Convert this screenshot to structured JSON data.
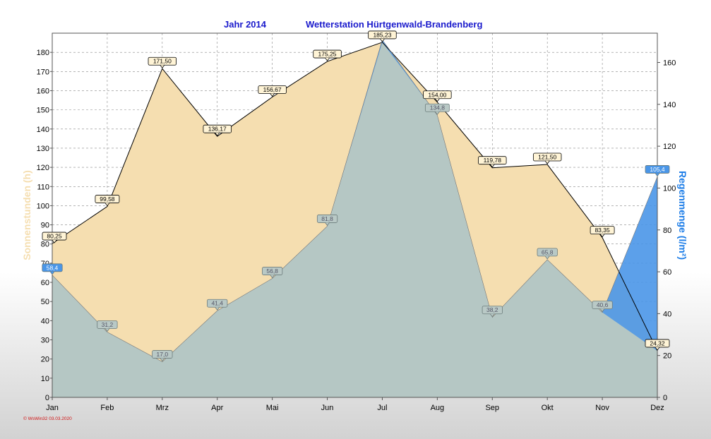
{
  "chart_data": {
    "type": "area",
    "title_year": "Jahr  2014",
    "title_station": "Wetterstation Hürtgenwald-Brandenberg",
    "categories": [
      "Jan",
      "Feb",
      "Mrz",
      "Apr",
      "Mai",
      "Jun",
      "Jul",
      "Aug",
      "Sep",
      "Okt",
      "Nov",
      "Dez"
    ],
    "left_axis": {
      "label": "Sonnenstunden (h)",
      "ylim": [
        0,
        190
      ],
      "ticks": [
        0,
        10,
        20,
        30,
        40,
        50,
        60,
        70,
        80,
        90,
        100,
        110,
        120,
        130,
        140,
        150,
        160,
        170,
        180
      ]
    },
    "right_axis": {
      "label": "Regenmenge  (l/m²)",
      "ylim": [
        0,
        174
      ],
      "ticks": [
        0,
        20,
        40,
        60,
        80,
        100,
        120,
        140,
        160
      ]
    },
    "grid": true,
    "series": [
      {
        "axis": "left",
        "values": [
          80.25,
          99.58,
          171.5,
          136.17,
          156.67,
          175.25,
          185.23,
          154.0,
          119.78,
          121.5,
          83.35,
          24.32
        ],
        "labels": [
          "80,25",
          "99,58",
          "171,50",
          "136,17",
          "156,67",
          "175,25",
          "185,23",
          "154,00",
          "119,78",
          "121,50",
          "83,35",
          "24,32"
        ],
        "color": "#f5deb0"
      },
      {
        "axis": "right",
        "values": [
          58.4,
          31.2,
          17.0,
          41.4,
          56.8,
          81.8,
          170.8,
          134.8,
          38.2,
          65.8,
          40.6,
          105.4
        ],
        "labels": [
          "58,4",
          "31,2",
          "17,0",
          "41,4",
          "56,8",
          "81,8",
          "",
          "134,8",
          "38,2",
          "65,8",
          "40,6",
          "105,4"
        ],
        "color": "#4a96e8"
      }
    ],
    "colors": {
      "sun_fill": "#f5deb0",
      "rain_fill": "#4a96e8",
      "overlap_fill": "#b5c7c4",
      "title": "#1a1acc",
      "right_label": "#1e7ee8"
    }
  },
  "footer": "© WsWin32  03.03.2020"
}
